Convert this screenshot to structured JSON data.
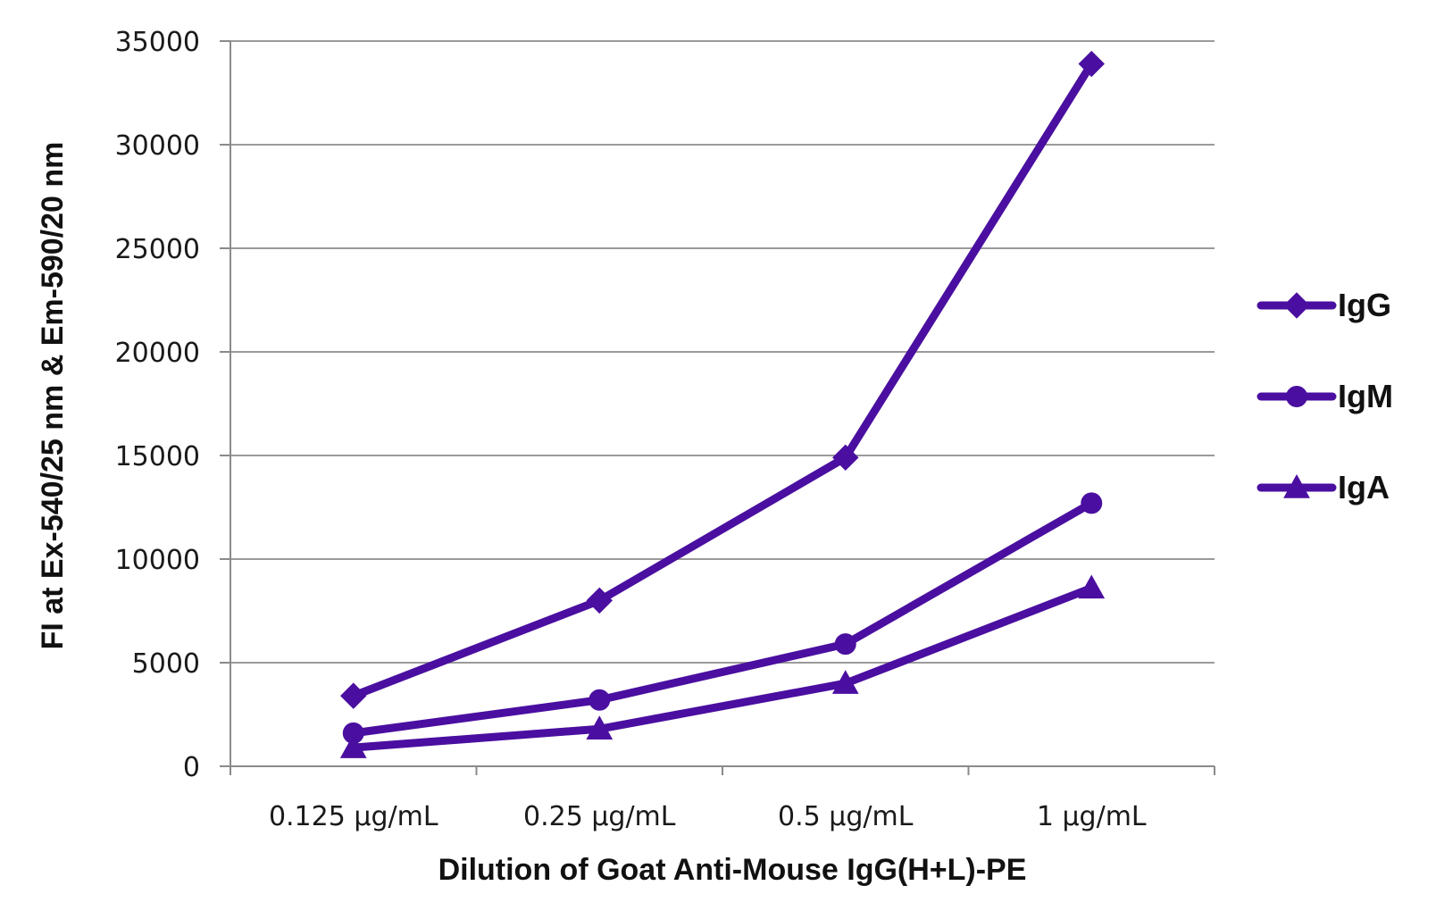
{
  "chart_data": {
    "type": "line",
    "title": "",
    "xlabel": "Dilution of Goat Anti-Mouse IgG(H+L)-PE",
    "ylabel": "FI at Ex-540/25 nm & Em-590/20 nm",
    "categories": [
      "0.125 µg/mL",
      "0.25 µg/mL",
      "0.5 µg/mL",
      "1 µg/mL"
    ],
    "ylim": [
      0,
      35000
    ],
    "yticks": [
      "0",
      "5000",
      "10000",
      "15000",
      "20000",
      "25000",
      "30000",
      "35000"
    ],
    "grid": true,
    "legend_position": "right",
    "line_color": "#4a0fa0",
    "series": [
      {
        "name": "IgG",
        "marker": "diamond",
        "values": [
          3400,
          8000,
          14900,
          33900
        ]
      },
      {
        "name": "IgM",
        "marker": "circle",
        "values": [
          1600,
          3200,
          5900,
          12700
        ]
      },
      {
        "name": "IgA",
        "marker": "triangle",
        "values": [
          900,
          1800,
          4000,
          8600
        ]
      }
    ]
  }
}
